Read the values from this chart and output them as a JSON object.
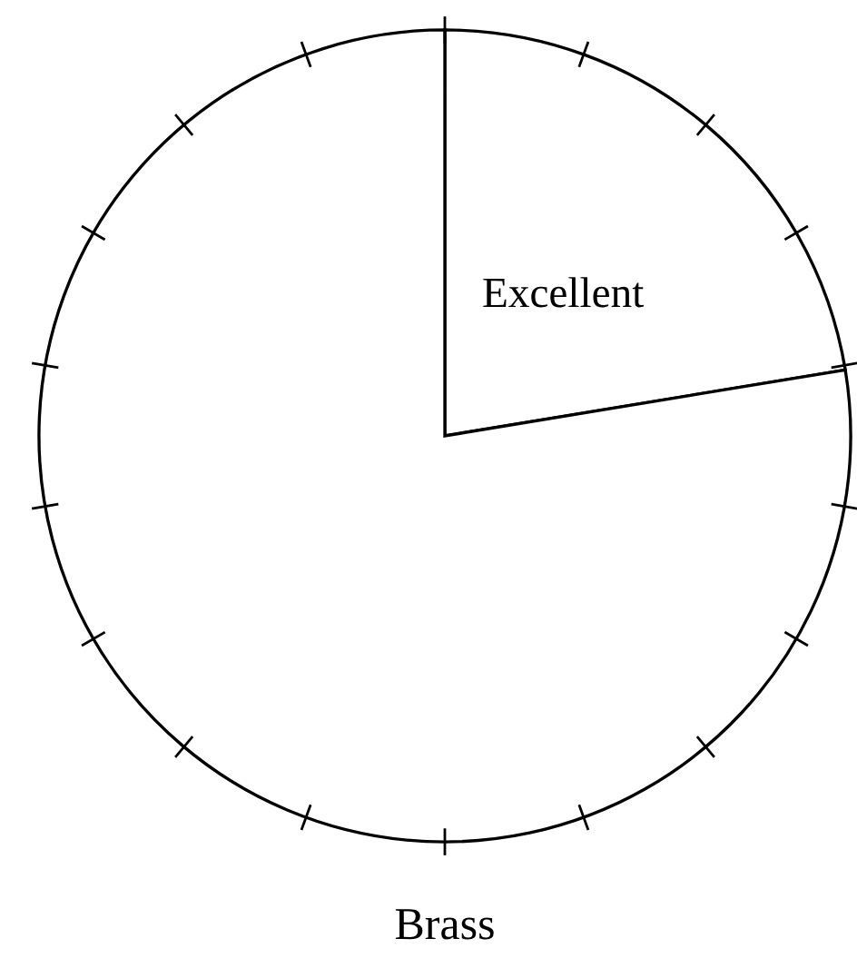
{
  "chart_data": {
    "type": "pie",
    "title": "Brass",
    "categories": [
      "Excellent",
      null
    ],
    "values": [
      22.4,
      77.6
    ],
    "colors": [
      "#ffffff",
      "#ffffff"
    ]
  }
}
